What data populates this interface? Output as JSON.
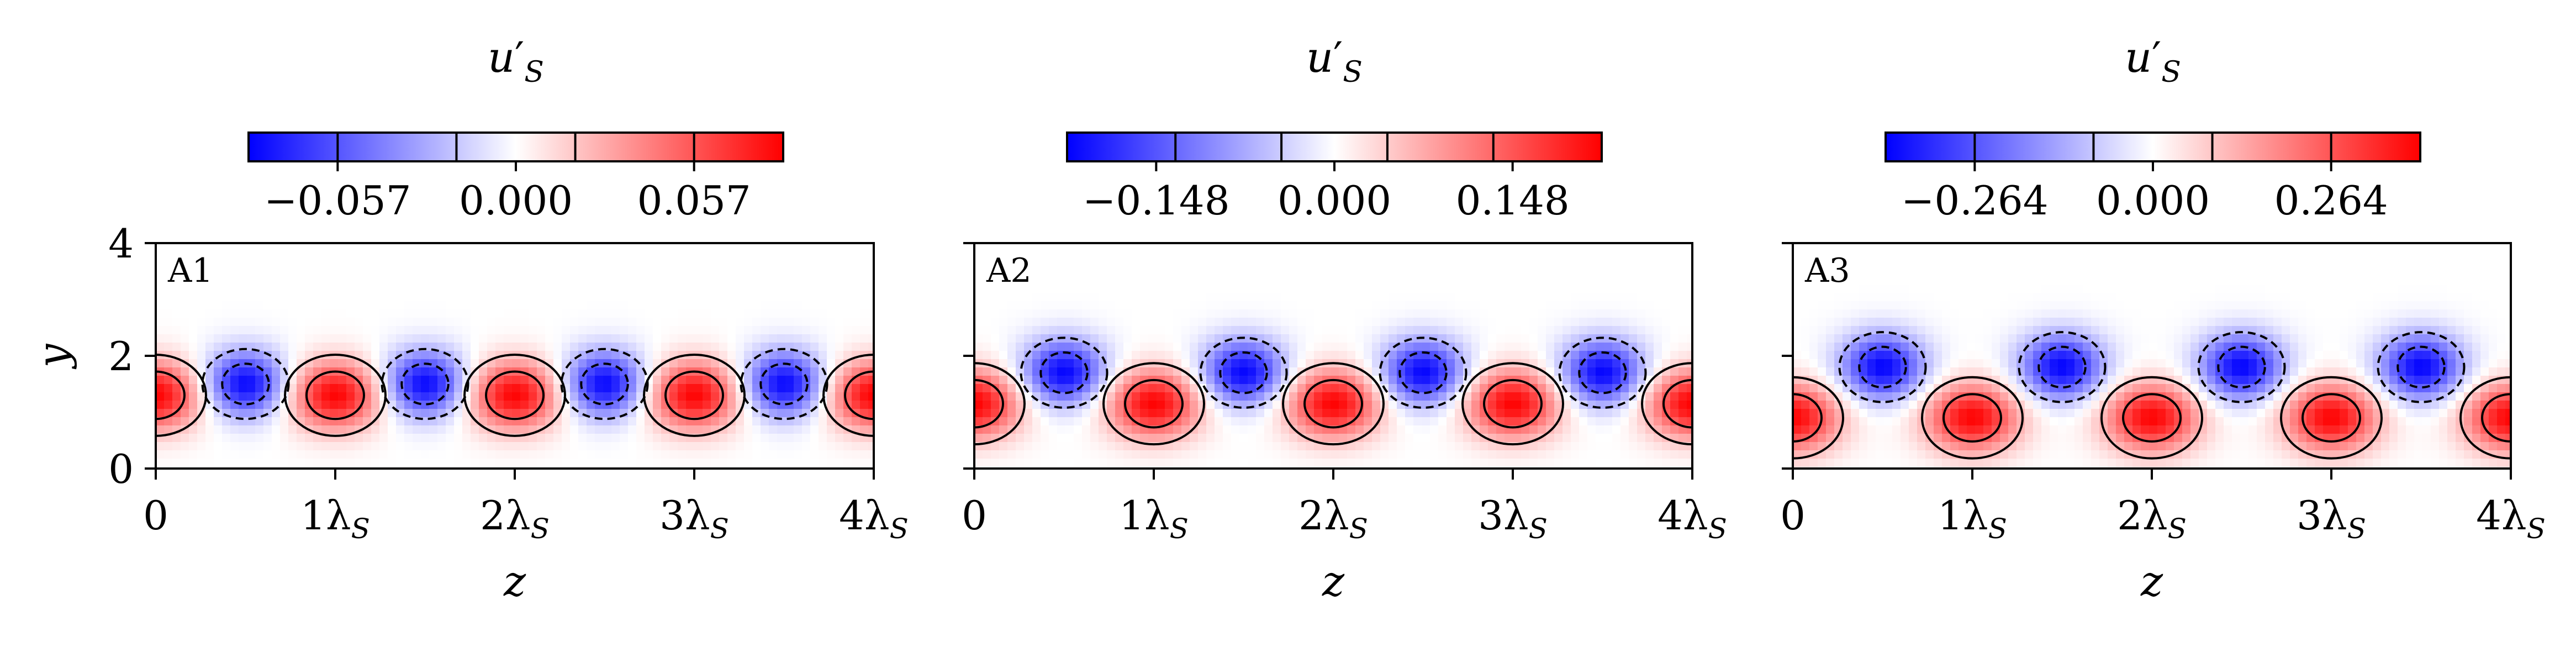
{
  "chart_data": [
    {
      "type": "heatmap",
      "panel_label": "A1",
      "title": "",
      "colorbar": {
        "label": "u'_S",
        "label_main": "u",
        "label_prime": "′",
        "label_sub": "S",
        "ticks": [
          -0.057,
          0.0,
          0.057
        ],
        "tick_labels": [
          "−0.057",
          "0.000",
          "0.057"
        ],
        "range": [
          -0.0855,
          0.0855
        ],
        "contour_levels": [
          -0.057,
          -0.019,
          0.019,
          0.057
        ]
      },
      "xlabel": "z",
      "ylabel": "y",
      "xlim_wavelengths": [
        0,
        4
      ],
      "ylim": [
        0,
        4
      ],
      "xticks": [
        0,
        1,
        2,
        3,
        4
      ],
      "xtick_labels": [
        "0",
        "1λ",
        "2λ",
        "3λ",
        "4λ"
      ],
      "xtick_sub": "S",
      "yticks": [
        0,
        2,
        4
      ],
      "ytick_labels": [
        "0",
        "2",
        "4"
      ],
      "positive_cells": {
        "centers_z": [
          0,
          1,
          2,
          3,
          4
        ],
        "center_y": 1.3,
        "amplitude": 0.085
      },
      "negative_cells": {
        "centers_z": [
          0.5,
          1.5,
          2.5,
          3.5
        ],
        "center_y": 1.5,
        "amplitude": -0.085
      }
    },
    {
      "type": "heatmap",
      "panel_label": "A2",
      "title": "",
      "colorbar": {
        "label": "u'_S",
        "label_main": "u",
        "label_prime": "′",
        "label_sub": "S",
        "ticks": [
          -0.148,
          0.0,
          0.148
        ],
        "tick_labels": [
          "−0.148",
          "0.000",
          "0.148"
        ],
        "range": [
          -0.222,
          0.222
        ],
        "contour_levels": [
          -0.132,
          -0.044,
          0.044,
          0.132
        ]
      },
      "xlabel": "z",
      "xlim_wavelengths": [
        0,
        4
      ],
      "ylim": [
        0,
        4
      ],
      "xticks": [
        0,
        1,
        2,
        3,
        4
      ],
      "xtick_labels": [
        "0",
        "1λ",
        "2λ",
        "3λ",
        "4λ"
      ],
      "xtick_sub": "S",
      "yticks": [
        0,
        2,
        4
      ],
      "positive_cells": {
        "centers_z": [
          0,
          1,
          2,
          3,
          4
        ],
        "center_y": 1.15,
        "amplitude": 0.22
      },
      "negative_cells": {
        "centers_z": [
          0.5,
          1.5,
          2.5,
          3.5
        ],
        "center_y": 1.7,
        "amplitude": -0.22
      }
    },
    {
      "type": "heatmap",
      "panel_label": "A3",
      "title": "",
      "colorbar": {
        "label": "u'_S",
        "label_main": "u",
        "label_prime": "′",
        "label_sub": "S",
        "ticks": [
          -0.264,
          0.0,
          0.264
        ],
        "tick_labels": [
          "−0.264",
          "0.000",
          "0.264"
        ],
        "range": [
          -0.396,
          0.396
        ],
        "contour_levels": [
          -0.264,
          -0.088,
          0.088,
          0.264
        ]
      },
      "xlabel": "z",
      "xlim_wavelengths": [
        0,
        4
      ],
      "ylim": [
        0,
        4
      ],
      "xticks": [
        0,
        1,
        2,
        3,
        4
      ],
      "xtick_labels": [
        "0",
        "1λ",
        "2λ",
        "3λ",
        "4λ"
      ],
      "xtick_sub": "S",
      "yticks": [
        0,
        2,
        4
      ],
      "positive_cells": {
        "centers_z": [
          0,
          1,
          2,
          3,
          4
        ],
        "center_y": 0.9,
        "amplitude": 0.39
      },
      "negative_cells": {
        "centers_z": [
          0.5,
          1.5,
          2.5,
          3.5
        ],
        "center_y": 1.8,
        "amplitude": -0.39
      }
    }
  ],
  "colors": {
    "positive": "#ff0000",
    "negative": "#0000ff",
    "neutral": "#ffffff",
    "contour": "#000000"
  }
}
